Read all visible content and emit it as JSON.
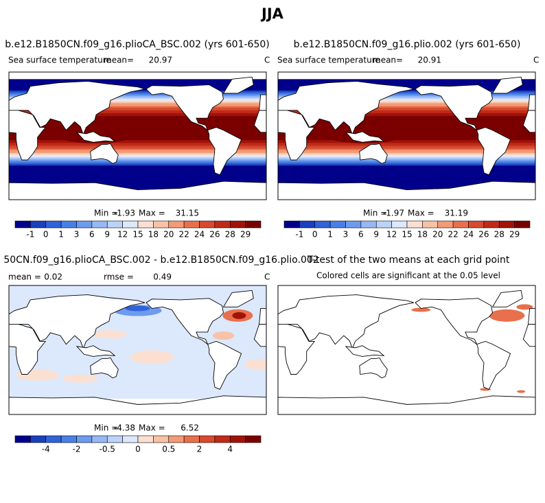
{
  "title": "JJA",
  "panels": [
    {
      "title": "b.e12.B1850CN.f09_g16.plioCA_BSC.002 (yrs 601-650)",
      "variable": "Sea surface temperature",
      "mean_label": "mean=",
      "mean": 20.97,
      "units": "C",
      "min_label": "Min =",
      "min": -1.93,
      "max_label": "Max =",
      "max": 31.15,
      "colorbar": {
        "labels": [
          -1,
          0,
          1,
          3,
          6,
          9,
          12,
          15,
          18,
          20,
          22,
          24,
          26,
          28,
          29
        ],
        "colors": [
          "#00008b",
          "#1b3fbd",
          "#2f63d8",
          "#4a7fe6",
          "#6d9bee",
          "#96b8f3",
          "#bcd3f7",
          "#dce8fb",
          "#fbe0d2",
          "#f8c2a6",
          "#f29b76",
          "#e8704d",
          "#d74a2e",
          "#c02a18",
          "#a11209",
          "#7a0000"
        ]
      }
    },
    {
      "title": "b.e12.B1850CN.f09_g16.plio.002 (yrs 601-650)",
      "variable": "Sea surface temperature",
      "mean_label": "mean=",
      "mean": 20.91,
      "units": "C",
      "min_label": "Min =",
      "min": -1.97,
      "max_label": "Max =",
      "max": 31.19,
      "colorbar": {
        "labels": [
          -1,
          0,
          1,
          3,
          6,
          9,
          12,
          15,
          18,
          20,
          22,
          24,
          26,
          28,
          29
        ],
        "colors": [
          "#00008b",
          "#1b3fbd",
          "#2f63d8",
          "#4a7fe6",
          "#6d9bee",
          "#96b8f3",
          "#bcd3f7",
          "#dce8fb",
          "#fbe0d2",
          "#f8c2a6",
          "#f29b76",
          "#e8704d",
          "#d74a2e",
          "#c02a18",
          "#a11209",
          "#7a0000"
        ]
      }
    },
    {
      "title": "50CN.f09_g16.plioCA_BSC.002 - b.e12.B1850CN.f09_g16.plio.002",
      "mean_label": "mean =",
      "mean": 0.02,
      "rmse_label": "rmse =",
      "rmse": 0.49,
      "units": "C",
      "min_label": "Min =",
      "min": -4.38,
      "max_label": "Max =",
      "max": 6.52,
      "colorbar": {
        "labels": [
          -4,
          -2,
          -0.5,
          0,
          0.5,
          2,
          4
        ],
        "colors": [
          "#00008b",
          "#1b3fbd",
          "#2f63d8",
          "#4a7fe6",
          "#6d9bee",
          "#96b8f3",
          "#bcd3f7",
          "#dce8fb",
          "#fbe0d2",
          "#f8c2a6",
          "#f29b76",
          "#e8704d",
          "#d74a2e",
          "#c02a18",
          "#a11209",
          "#7a0000"
        ]
      }
    },
    {
      "title": "T-test of the two means at each grid point",
      "subtitle": "Colored cells are significant at the 0.05 level"
    }
  ]
}
